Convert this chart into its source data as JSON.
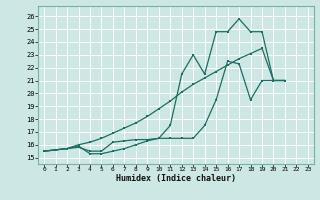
{
  "xlabel": "Humidex (Indice chaleur)",
  "bg_color": "#cde8e4",
  "grid_color": "#b8d8d4",
  "line_color": "#1a6e64",
  "xlim": [
    -0.5,
    23.5
  ],
  "ylim": [
    14.5,
    26.8
  ],
  "xticks": [
    0,
    1,
    2,
    3,
    4,
    5,
    6,
    7,
    8,
    9,
    10,
    11,
    12,
    13,
    14,
    15,
    16,
    17,
    18,
    19,
    20,
    21,
    22,
    23
  ],
  "yticks": [
    15,
    16,
    17,
    18,
    19,
    20,
    21,
    22,
    23,
    24,
    25,
    26
  ],
  "line1_x": [
    0,
    1,
    2,
    3,
    4,
    5,
    6,
    7,
    8,
    9,
    10,
    11,
    12,
    13,
    14,
    15,
    16,
    17,
    18,
    19,
    20,
    21
  ],
  "line1_y": [
    15.5,
    15.6,
    15.7,
    15.8,
    15.5,
    15.5,
    16.2,
    16.3,
    16.4,
    16.4,
    16.5,
    17.5,
    21.5,
    23.0,
    21.5,
    24.8,
    24.8,
    25.8,
    24.8,
    24.8,
    21.0,
    21.0
  ],
  "line2_x": [
    0,
    1,
    2,
    3,
    4,
    5,
    6,
    7,
    8,
    9,
    10,
    11,
    12,
    13,
    14,
    15,
    16,
    17,
    18,
    19,
    20,
    21
  ],
  "line2_y": [
    15.5,
    15.6,
    15.7,
    15.9,
    15.3,
    15.3,
    15.5,
    15.7,
    16.0,
    16.3,
    16.5,
    16.5,
    16.5,
    16.5,
    17.5,
    19.5,
    22.5,
    22.3,
    19.5,
    21.0,
    21.0,
    21.0
  ],
  "line3_x": [
    0,
    1,
    2,
    3,
    4,
    5,
    6,
    7,
    8,
    9,
    10,
    11,
    12,
    13,
    14,
    15,
    16,
    17,
    18,
    19,
    20,
    21
  ],
  "line3_y": [
    15.5,
    15.6,
    15.7,
    16.0,
    16.2,
    16.5,
    16.9,
    17.3,
    17.7,
    18.2,
    18.8,
    19.4,
    20.1,
    20.7,
    21.2,
    21.7,
    22.2,
    22.7,
    23.1,
    23.5,
    21.0,
    21.0
  ]
}
